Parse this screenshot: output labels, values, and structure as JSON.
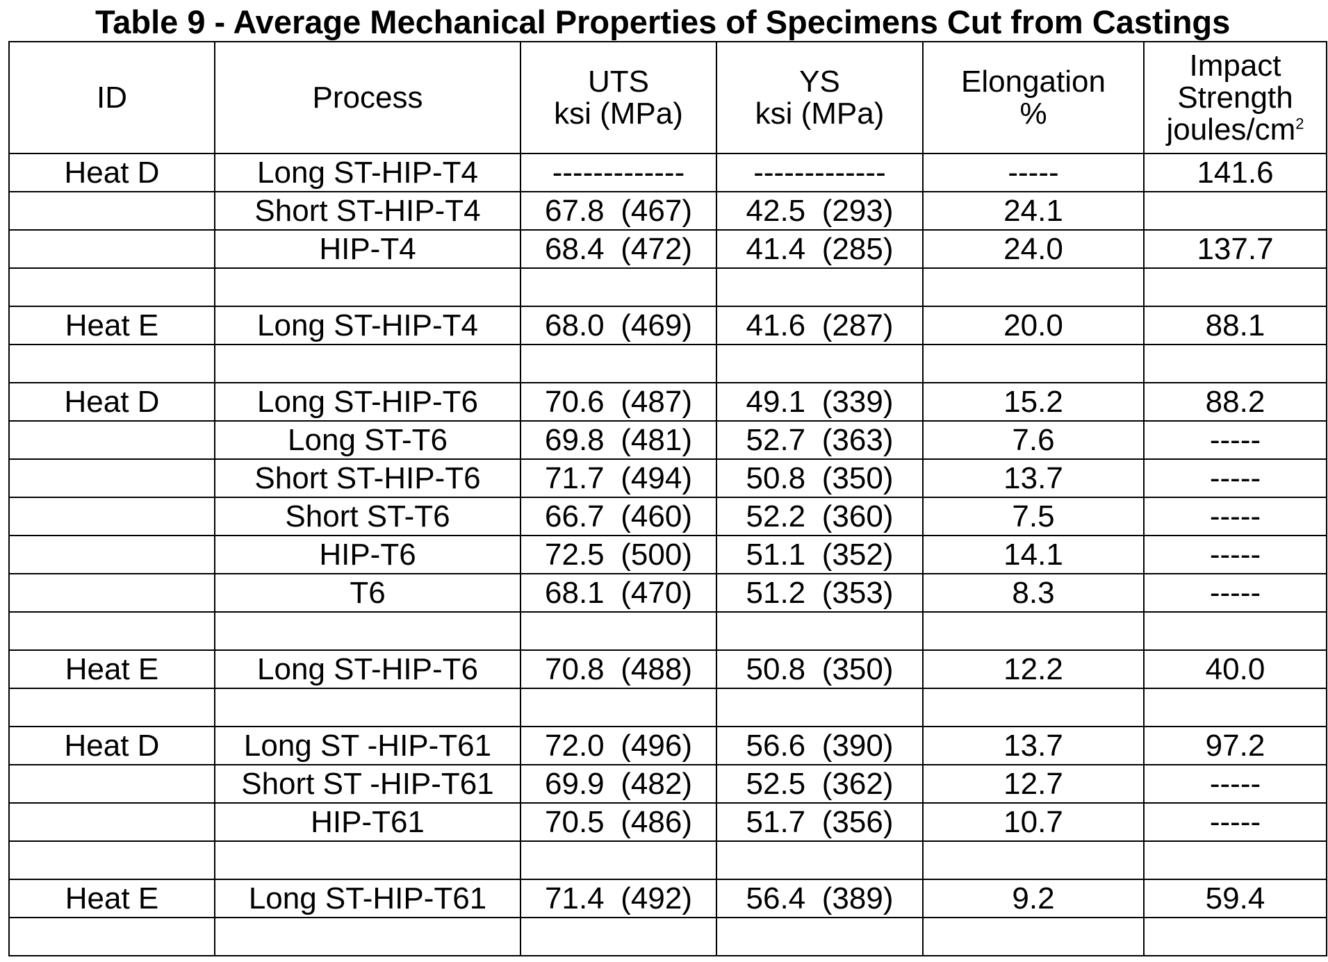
{
  "title": "Table 9 - Average Mechanical Properties of Specimens Cut from Castings",
  "headers": {
    "id": "ID",
    "process": "Process",
    "uts_line1": "UTS",
    "uts_line2": "ksi (MPa)",
    "ys_line1": "YS",
    "ys_line2": "ksi (MPa)",
    "elong_line1": "Elongation",
    "elong_line2": "%",
    "impact_line1": "Impact",
    "impact_line2": "Strength",
    "impact_line3": "joules/cm",
    "impact_sup": "2"
  },
  "rows": [
    {
      "id": "Heat D",
      "process": "Long ST-HIP-T4",
      "uts": "-------------",
      "uts_mpa": "",
      "ys": "-------------",
      "ys_mpa": "",
      "elong": "-----",
      "impact": "141.6"
    },
    {
      "id": "",
      "process": "Short ST-HIP-T4",
      "uts": "67.8",
      "uts_mpa": "(467)",
      "ys": "42.5",
      "ys_mpa": "(293)",
      "elong": "24.1",
      "impact": ""
    },
    {
      "id": "",
      "process": "HIP-T4",
      "uts": "68.4",
      "uts_mpa": "(472)",
      "ys": "41.4",
      "ys_mpa": "(285)",
      "elong": "24.0",
      "impact": "137.7"
    },
    {
      "id": "",
      "process": "",
      "uts": "",
      "uts_mpa": "",
      "ys": "",
      "ys_mpa": "",
      "elong": "",
      "impact": ""
    },
    {
      "id": "Heat E",
      "process": "Long ST-HIP-T4",
      "uts": "68.0",
      "uts_mpa": "(469)",
      "ys": "41.6",
      "ys_mpa": "(287)",
      "elong": "20.0",
      "impact": "88.1"
    },
    {
      "id": "",
      "process": "",
      "uts": "",
      "uts_mpa": "",
      "ys": "",
      "ys_mpa": "",
      "elong": "",
      "impact": ""
    },
    {
      "id": "Heat D",
      "process": "Long ST-HIP-T6",
      "uts": "70.6",
      "uts_mpa": "(487)",
      "ys": "49.1",
      "ys_mpa": "(339)",
      "elong": "15.2",
      "impact": "88.2"
    },
    {
      "id": "",
      "process": "Long ST-T6",
      "uts": "69.8",
      "uts_mpa": "(481)",
      "ys": "52.7",
      "ys_mpa": "(363)",
      "elong": "7.6",
      "impact": "-----"
    },
    {
      "id": "",
      "process": "Short ST-HIP-T6",
      "uts": "71.7",
      "uts_mpa": "(494)",
      "ys": "50.8",
      "ys_mpa": "(350)",
      "elong": "13.7",
      "impact": "-----"
    },
    {
      "id": "",
      "process": "Short ST-T6",
      "uts": "66.7",
      "uts_mpa": "(460)",
      "ys": "52.2",
      "ys_mpa": "(360)",
      "elong": "7.5",
      "impact": "-----"
    },
    {
      "id": "",
      "process": "HIP-T6",
      "uts": "72.5",
      "uts_mpa": "(500)",
      "ys": "51.1",
      "ys_mpa": "(352)",
      "elong": "14.1",
      "impact": "-----"
    },
    {
      "id": "",
      "process": "T6",
      "uts": "68.1",
      "uts_mpa": "(470)",
      "ys": "51.2",
      "ys_mpa": "(353)",
      "elong": "8.3",
      "impact": "-----"
    },
    {
      "id": "",
      "process": "",
      "uts": "",
      "uts_mpa": "",
      "ys": "",
      "ys_mpa": "",
      "elong": "",
      "impact": ""
    },
    {
      "id": "Heat E",
      "process": "Long ST-HIP-T6",
      "uts": "70.8",
      "uts_mpa": "(488)",
      "ys": "50.8",
      "ys_mpa": "(350)",
      "elong": "12.2",
      "impact": "40.0"
    },
    {
      "id": "",
      "process": "",
      "uts": "",
      "uts_mpa": "",
      "ys": "",
      "ys_mpa": "",
      "elong": "",
      "impact": ""
    },
    {
      "id": "Heat D",
      "process": "Long ST -HIP-T61",
      "uts": "72.0",
      "uts_mpa": "(496)",
      "ys": "56.6",
      "ys_mpa": "(390)",
      "elong": "13.7",
      "impact": "97.2"
    },
    {
      "id": "",
      "process": "Short ST -HIP-T61",
      "uts": "69.9",
      "uts_mpa": "(482)",
      "ys": "52.5",
      "ys_mpa": "(362)",
      "elong": "12.7",
      "impact": "-----"
    },
    {
      "id": "",
      "process": "HIP-T61",
      "uts": "70.5",
      "uts_mpa": "(486)",
      "ys": "51.7",
      "ys_mpa": "(356)",
      "elong": "10.7",
      "impact": "-----"
    },
    {
      "id": "",
      "process": "",
      "uts": "",
      "uts_mpa": "",
      "ys": "",
      "ys_mpa": "",
      "elong": "",
      "impact": ""
    },
    {
      "id": "Heat E",
      "process": "Long ST-HIP-T61",
      "uts": "71.4",
      "uts_mpa": "(492)",
      "ys": "56.4",
      "ys_mpa": "(389)",
      "elong": "9.2",
      "impact": "59.4"
    },
    {
      "id": "",
      "process": "",
      "uts": "",
      "uts_mpa": "",
      "ys": "",
      "ys_mpa": "",
      "elong": "",
      "impact": ""
    }
  ]
}
